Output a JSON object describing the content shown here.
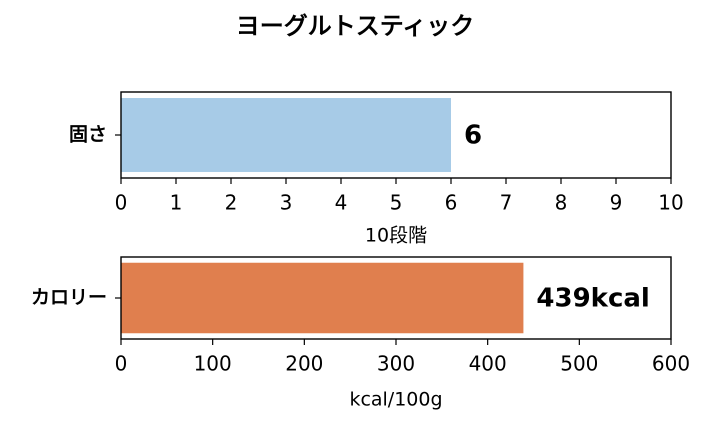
{
  "title": "ヨーグルトスティック",
  "chart_data": [
    {
      "type": "barh",
      "categories": [
        "固さ"
      ],
      "values": [
        6
      ],
      "color": "#a7cbe7",
      "xlim": [
        0,
        10
      ],
      "xticks": [
        0,
        1,
        2,
        3,
        4,
        5,
        6,
        7,
        8,
        9,
        10
      ],
      "xlabel": "10段階"
    },
    {
      "type": "barh",
      "categories": [
        "カロリー"
      ],
      "values": [
        439
      ],
      "value_labels": [
        "439kcal"
      ],
      "color": "#e07f4e",
      "xlim": [
        0,
        600
      ],
      "xticks": [
        0,
        100,
        200,
        300,
        400,
        500,
        600
      ],
      "xlabel": "kcal/100g"
    }
  ]
}
